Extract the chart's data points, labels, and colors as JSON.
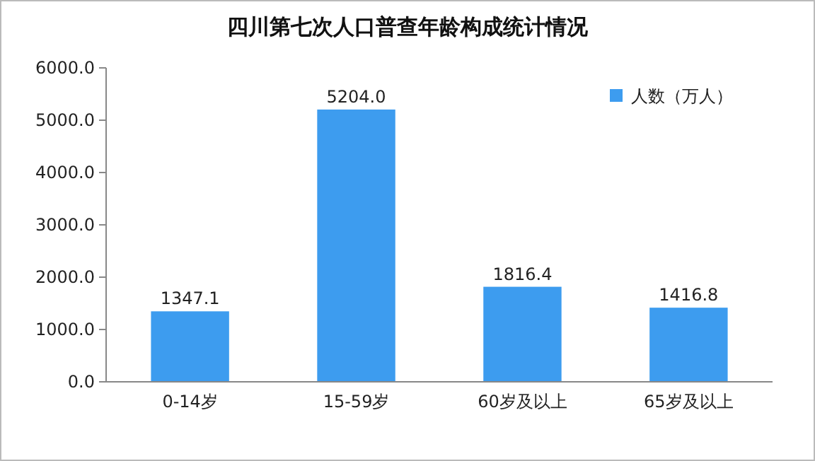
{
  "chart_data": {
    "type": "bar",
    "title": "四川第七次人口普查年龄构成统计情况",
    "categories": [
      "0-14岁",
      "15-59岁",
      "60岁及以上",
      "65岁及以上"
    ],
    "series": [
      {
        "name": "人数（万人）",
        "color": "#3d9cef",
        "values": [
          1347.1,
          5204.0,
          1816.4,
          1416.8
        ]
      }
    ],
    "value_labels": [
      "1347.1",
      "5204.0",
      "1816.4",
      "1416.8"
    ],
    "ylim": [
      0,
      6000
    ],
    "yticks": [
      {
        "value": 0,
        "label": "0.0"
      },
      {
        "value": 1000,
        "label": "1000.0"
      },
      {
        "value": 2000,
        "label": "2000.0"
      },
      {
        "value": 3000,
        "label": "3000.0"
      },
      {
        "value": 4000,
        "label": "4000.0"
      },
      {
        "value": 5000,
        "label": "5000.0"
      },
      {
        "value": 6000,
        "label": "6000.0"
      }
    ],
    "grid": false,
    "legend": "top right"
  }
}
